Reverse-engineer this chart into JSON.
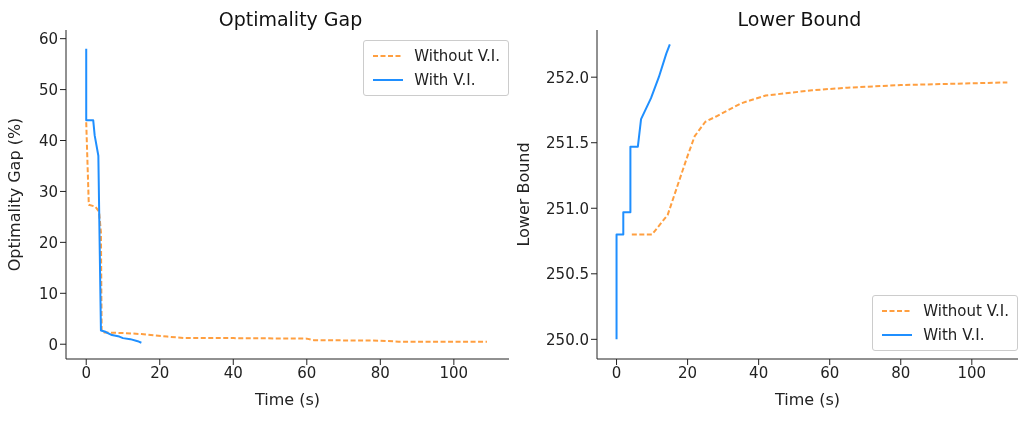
{
  "chart_data": [
    {
      "type": "line",
      "title": "Optimality Gap",
      "xlabel": "Time (s)",
      "ylabel": "Optimality Gap (%)",
      "xlim": [
        -5.5,
        115
      ],
      "ylim": [
        -2.9,
        61.7
      ],
      "xticks": [
        0,
        20,
        40,
        60,
        80,
        100
      ],
      "yticks": [
        0,
        10,
        20,
        30,
        40,
        50,
        60
      ],
      "grid": false,
      "legend": "top right",
      "marker": "none",
      "series": [
        {
          "name": "Without V.I.",
          "color": "#ff9f40",
          "line_style": "dashed",
          "x": [
            0,
            0.7,
            2.5,
            3.5,
            4,
            4.2,
            5,
            10,
            15,
            22,
            27,
            40,
            60,
            62,
            80,
            85,
            109
          ],
          "values": [
            43.6,
            27.4,
            27,
            26,
            22,
            2.5,
            2.3,
            2.2,
            2,
            1.5,
            1.2,
            1.2,
            1.1,
            0.8,
            0.7,
            0.5,
            0.5
          ]
        },
        {
          "name": "With V.I.",
          "color": "#1f8fff",
          "line_style": "solid",
          "x": [
            0,
            0,
            1.9,
            2.3,
            3.3,
            4,
            5,
            7,
            9,
            10,
            12,
            14,
            15
          ],
          "values": [
            58,
            44,
            44,
            41,
            37,
            2.7,
            2.5,
            1.8,
            1.5,
            1.2,
            1,
            0.6,
            0.3
          ]
        }
      ]
    },
    {
      "type": "line",
      "title": "Lower Bound",
      "xlabel": "Time (s)",
      "ylabel": "Lower Bound",
      "xlim": [
        -5.5,
        113
      ],
      "ylim": [
        249.85,
        252.36
      ],
      "xticks": [
        0,
        20,
        40,
        60,
        80,
        100
      ],
      "yticks": [
        {
          "value": 250,
          "label": "250.0"
        },
        {
          "value": 250.5,
          "label": "250.5"
        },
        {
          "value": 251,
          "label": "251.0"
        },
        {
          "value": 251.5,
          "label": "251.5"
        },
        {
          "value": 252,
          "label": "252.0"
        }
      ],
      "grid": false,
      "legend": "bottom right",
      "marker": "none",
      "series": [
        {
          "name": "Without V.I.",
          "color": "#ff9f40",
          "line_style": "dashed",
          "x": [
            4.3,
            10,
            14.4,
            17.5,
            20,
            22,
            25,
            28,
            35,
            42,
            55,
            65,
            80,
            95,
            110
          ],
          "values": [
            250.8,
            250.8,
            250.95,
            251.2,
            251.4,
            251.55,
            251.66,
            251.7,
            251.8,
            251.86,
            251.9,
            251.92,
            251.94,
            251.95,
            251.96
          ]
        },
        {
          "name": "With V.I.",
          "color": "#1f8fff",
          "line_style": "solid",
          "x": [
            0,
            0,
            1.9,
            1.9,
            3.9,
            3.9,
            6,
            6.9,
            9.7,
            11.9,
            14,
            15
          ],
          "values": [
            250,
            250.8,
            250.8,
            250.97,
            250.97,
            251.47,
            251.47,
            251.68,
            251.84,
            252,
            252.18,
            252.25
          ]
        }
      ]
    }
  ]
}
